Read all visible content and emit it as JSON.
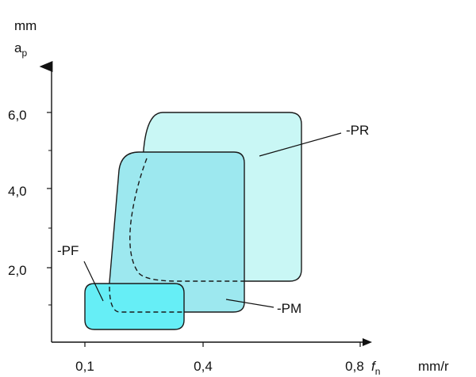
{
  "chart_data": {
    "type": "area",
    "y_unit": "mm",
    "y_symbol": "a",
    "y_symbol_sub": "p",
    "x_unit": "mm/r",
    "x_symbol": "f",
    "x_symbol_sub": "n",
    "x_ticks": [
      "0,1",
      "0,4",
      "0,8"
    ],
    "y_ticks": [
      "2,0",
      "4,0",
      "6,0"
    ],
    "y_minor_ticks": [
      1,
      3,
      5
    ],
    "regions": [
      {
        "name": "-PR",
        "f_range": [
          0.22,
          0.65
        ],
        "ap_range": [
          1.6,
          6.0
        ],
        "color": "#c9f7f5",
        "label": "-PR"
      },
      {
        "name": "-PM",
        "f_range": [
          0.15,
          0.45
        ],
        "ap_range": [
          0.8,
          5.0
        ],
        "color": "#9de8ef",
        "label": "-PM"
      },
      {
        "name": "-PF",
        "f_range": [
          0.08,
          0.33
        ],
        "ap_range": [
          0.3,
          1.5
        ],
        "color": "#66eef6",
        "label": "-PF"
      }
    ]
  }
}
